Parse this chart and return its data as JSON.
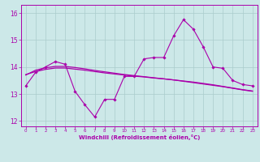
{
  "xlabel": "Windchill (Refroidissement éolien,°C)",
  "xlim": [
    -0.5,
    23.5
  ],
  "ylim": [
    11.8,
    16.3
  ],
  "yticks": [
    12,
    13,
    14,
    15,
    16
  ],
  "xticks": [
    0,
    1,
    2,
    3,
    4,
    5,
    6,
    7,
    8,
    9,
    10,
    11,
    12,
    13,
    14,
    15,
    16,
    17,
    18,
    19,
    20,
    21,
    22,
    23
  ],
  "bg_color": "#cce8e8",
  "line_color": "#aa00aa",
  "grid_color": "#aacccc",
  "series1_x": [
    0,
    1,
    2,
    3,
    4,
    5,
    6,
    7,
    8,
    9,
    10,
    11,
    12,
    13,
    14,
    15,
    16,
    17,
    18,
    19,
    20,
    21,
    22,
    23
  ],
  "series1_y": [
    13.3,
    13.8,
    14.0,
    14.2,
    14.1,
    13.1,
    12.6,
    12.15,
    12.8,
    12.8,
    13.65,
    13.65,
    14.3,
    14.35,
    14.35,
    15.15,
    15.75,
    15.4,
    14.75,
    14.0,
    13.95,
    13.5,
    13.35,
    13.3
  ],
  "series2_y": [
    13.7,
    13.88,
    13.97,
    14.02,
    14.02,
    13.98,
    13.93,
    13.87,
    13.82,
    13.77,
    13.72,
    13.68,
    13.64,
    13.6,
    13.56,
    13.52,
    13.47,
    13.42,
    13.37,
    13.32,
    13.27,
    13.21,
    13.15,
    13.1
  ],
  "series3_y": [
    13.72,
    13.83,
    13.91,
    13.96,
    13.96,
    13.92,
    13.88,
    13.83,
    13.78,
    13.74,
    13.7,
    13.66,
    13.63,
    13.59,
    13.56,
    13.52,
    13.48,
    13.44,
    13.39,
    13.34,
    13.28,
    13.22,
    13.16,
    13.11
  ]
}
